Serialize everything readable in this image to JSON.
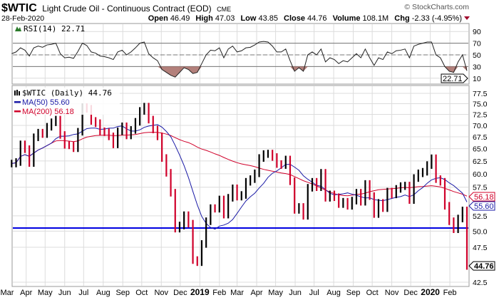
{
  "header": {
    "symbol": "$WTIC",
    "name": "Light Crude Oil - Continuous Contract (EOD)",
    "exchange": "CME",
    "date": "28-Feb-2020",
    "copyright": "© StockCharts.com",
    "open_label": "Open",
    "open": "46.49",
    "high_label": "High",
    "high": "47.03",
    "low_label": "Low",
    "low": "43.85",
    "close_label": "Close",
    "close": "44.76",
    "volume_label": "Volume",
    "volume": "108.1M",
    "chg_label": "Chg",
    "chg": "-2.33 (-4.95%)"
  },
  "chart_data": {
    "type": "line",
    "interval": "weekly",
    "x_start": "2018-03-09",
    "x_end": "2020-02-28",
    "y_scale": "log",
    "price_legend": "$WTIC (Daily) 44.76",
    "ma50_legend": "MA(50) 55.60",
    "ma200_legend": "MA(200) 56.18",
    "rsi_legend": "RSI(14) 22.71",
    "tags": {
      "last": "44.76",
      "ma50": "55.60",
      "ma200": "56.18",
      "rsi": "22.71"
    },
    "support_level": 50.5,
    "ma_windows_weeks": {
      "ma50": 10,
      "ma200": 40
    },
    "closes": [
      62.0,
      62.3,
      65.9,
      64.9,
      62.1,
      67.4,
      68.4,
      68.1,
      69.7,
      70.7,
      71.3,
      67.9,
      65.8,
      65.7,
      65.1,
      68.6,
      74.2,
      73.8,
      71.0,
      70.5,
      68.7,
      68.5,
      67.6,
      65.9,
      68.7,
      69.8,
      67.8,
      69.0,
      70.8,
      73.3,
      74.3,
      71.3,
      69.1,
      67.6,
      63.1,
      60.2,
      56.5,
      50.4,
      50.9,
      52.6,
      51.2,
      45.6,
      45.3,
      48.0,
      51.6,
      53.8,
      53.7,
      55.3,
      52.7,
      55.6,
      57.3,
      55.8,
      56.1,
      58.5,
      59.0,
      60.1,
      63.1,
      63.9,
      64.0,
      63.3,
      61.9,
      61.7,
      62.8,
      58.6,
      53.5,
      54.0,
      52.5,
      57.4,
      58.5,
      57.5,
      60.2,
      55.6,
      56.2,
      55.7,
      54.5,
      54.9,
      54.2,
      55.1,
      56.5,
      54.9,
      58.1,
      55.9,
      52.8,
      54.7,
      53.8,
      56.7,
      56.2,
      57.2,
      57.7,
      57.8,
      55.2,
      59.2,
      60.1,
      60.4,
      61.7,
      63.05,
      59.0,
      58.5,
      54.2,
      51.6,
      50.3,
      52.05,
      53.4,
      44.76
    ],
    "rsi": [
      52,
      55,
      62,
      58,
      48,
      62,
      65,
      63,
      67,
      68,
      70,
      52,
      45,
      46,
      44,
      56,
      70,
      66,
      55,
      53,
      48,
      47,
      45,
      42,
      55,
      58,
      50,
      55,
      62,
      70,
      72,
      52,
      45,
      40,
      25,
      20,
      15,
      12,
      20,
      28,
      25,
      18,
      20,
      35,
      50,
      58,
      57,
      62,
      45,
      60,
      65,
      55,
      57,
      62,
      63,
      67,
      72,
      73,
      72,
      65,
      55,
      55,
      60,
      40,
      22,
      28,
      22,
      50,
      55,
      50,
      60,
      38,
      45,
      42,
      35,
      40,
      38,
      45,
      52,
      45,
      60,
      45,
      32,
      45,
      42,
      55,
      52,
      57,
      58,
      60,
      45,
      65,
      68,
      70,
      72,
      72,
      50,
      45,
      30,
      22,
      20,
      38,
      50,
      22.71
    ],
    "price_ticks": [
      "77.5",
      "75.0",
      "72.5",
      "70.0",
      "67.5",
      "65.0",
      "62.5",
      "60.0",
      "57.5",
      "52.5",
      "50.0",
      "47.5",
      "42.5"
    ],
    "rsi_ticks": [
      "90",
      "70",
      "50",
      "30",
      "10"
    ],
    "rsi_levels": [
      70,
      50,
      30
    ],
    "x_labels": [
      {
        "label": "Mar",
        "date": "2018-03-01"
      },
      {
        "label": "Apr",
        "date": "2018-04-01"
      },
      {
        "label": "May",
        "date": "2018-05-01"
      },
      {
        "label": "Jun",
        "date": "2018-06-01"
      },
      {
        "label": "Jul",
        "date": "2018-07-01"
      },
      {
        "label": "Aug",
        "date": "2018-08-01"
      },
      {
        "label": "Sep",
        "date": "2018-09-01"
      },
      {
        "label": "Oct",
        "date": "2018-10-01"
      },
      {
        "label": "Nov",
        "date": "2018-11-01"
      },
      {
        "label": "Dec",
        "date": "2018-12-01"
      },
      {
        "label": "2019",
        "date": "2019-01-01",
        "bold": true
      },
      {
        "label": "Feb",
        "date": "2019-02-01"
      },
      {
        "label": "Mar",
        "date": "2019-03-01"
      },
      {
        "label": "Apr",
        "date": "2019-04-01"
      },
      {
        "label": "May",
        "date": "2019-05-01"
      },
      {
        "label": "Jun",
        "date": "2019-06-01"
      },
      {
        "label": "Jul",
        "date": "2019-07-01"
      },
      {
        "label": "Aug",
        "date": "2019-08-01"
      },
      {
        "label": "Sep",
        "date": "2019-09-01"
      },
      {
        "label": "Oct",
        "date": "2019-10-01"
      },
      {
        "label": "Nov",
        "date": "2019-11-01"
      },
      {
        "label": "Dec",
        "date": "2019-12-01"
      },
      {
        "label": "2020",
        "date": "2020-01-01",
        "bold": true
      },
      {
        "label": "Feb",
        "date": "2020-02-01"
      }
    ],
    "colors": {
      "up": "#000000",
      "down": "#d0002a",
      "ma50": "#1a1aa6",
      "ma200": "#d0002a",
      "support": "#0000e0",
      "rsi_fill": "#a0605a"
    }
  }
}
